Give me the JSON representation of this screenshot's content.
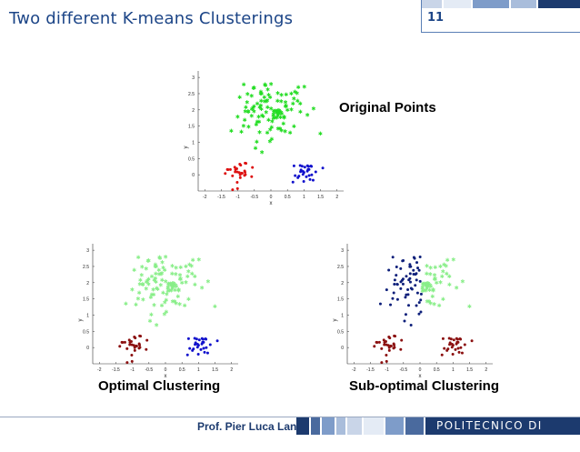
{
  "slide": {
    "title": "Two different K-means Clusterings",
    "number": "11"
  },
  "labels": {
    "original": "Original Points",
    "optimal": "Optimal Clustering",
    "suboptimal": "Sub-optimal Clustering"
  },
  "footer": {
    "author": "Prof. Pier Luca Lanzi",
    "institution": "POLITECNICO DI MILANO"
  },
  "colors": {
    "bright_green": "#22dd22",
    "light_green": "#88ee88",
    "red": "#dd1111",
    "dark_red": "#8b1010",
    "blue": "#1111cc",
    "navy": "#0d1f7a",
    "brand_blue": "#1c3a6e"
  },
  "chart_data": [
    {
      "type": "scatter",
      "xlabel": "x",
      "ylabel": "y",
      "xlim": [
        -2.2,
        2.2
      ],
      "ylim": [
        -0.5,
        3.2
      ],
      "xticks": [
        "-2",
        "-1.5",
        "-1",
        "-0.5",
        "0",
        "0.5",
        "1",
        "1.5",
        "2"
      ],
      "yticks": [
        "0",
        "0.5",
        "1",
        "1.5",
        "2",
        "2.5",
        "3"
      ],
      "groups": [
        {
          "cluster": "top",
          "color": "#22dd22",
          "marker": "star"
        },
        {
          "cluster": "left",
          "color": "#dd1111",
          "marker": "dot"
        },
        {
          "cluster": "right",
          "color": "#1111cc",
          "marker": "dot"
        }
      ]
    },
    {
      "type": "scatter",
      "xlabel": "x",
      "ylabel": "y",
      "xlim": [
        -2.2,
        2.2
      ],
      "ylim": [
        -0.5,
        3.2
      ],
      "xticks": [
        "-2",
        "-1.5",
        "-1",
        "-0.5",
        "0",
        "0.5",
        "1",
        "1.5",
        "2"
      ],
      "yticks": [
        "0",
        "0.5",
        "1",
        "1.5",
        "2",
        "2.5",
        "3"
      ],
      "groups": [
        {
          "cluster": "top",
          "color": "#88ee88",
          "marker": "star"
        },
        {
          "cluster": "left",
          "color": "#8b1010",
          "marker": "dot"
        },
        {
          "cluster": "right",
          "color": "#1111cc",
          "marker": "dot"
        }
      ]
    },
    {
      "type": "scatter",
      "xlabel": "x",
      "ylabel": "y",
      "xlim": [
        -2.2,
        2.2
      ],
      "ylim": [
        -0.5,
        3.2
      ],
      "xticks": [
        "-2",
        "-1.5",
        "-1",
        "-0.5",
        "0",
        "0.5",
        "1",
        "1.5",
        "2"
      ],
      "yticks": [
        "0",
        "0.5",
        "1",
        "1.5",
        "2",
        "2.5",
        "3"
      ],
      "groups": [
        {
          "cluster": "top-left",
          "color": "#0d1f7a",
          "marker": "dot"
        },
        {
          "cluster": "top-right",
          "color": "#88ee88",
          "marker": "star"
        },
        {
          "cluster": "bottom",
          "color": "#8b1010",
          "marker": "dot"
        }
      ]
    }
  ]
}
